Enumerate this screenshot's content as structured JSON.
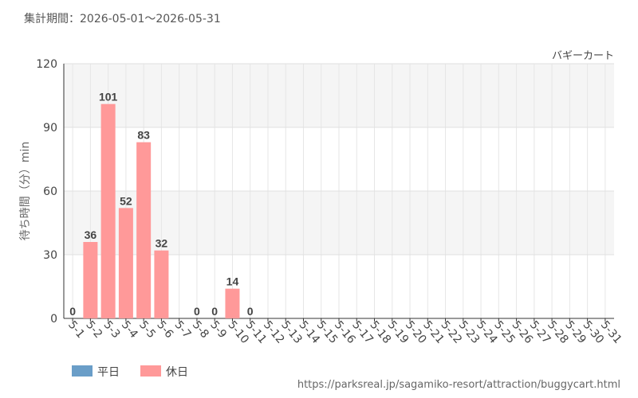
{
  "chart_data": {
    "type": "bar",
    "header": "集計期間：2026-05-01〜2026-05-31",
    "title": "バギーカート",
    "y_label": "待ち時間（分）min",
    "source": "https://parksreal.jp/sagamiko-resort/attraction/buggycart.html",
    "categories": [
      "5-1",
      "5-2",
      "5-3",
      "5-4",
      "5-5",
      "5-6",
      "5-7",
      "5-8",
      "5-9",
      "5-10",
      "5-11",
      "5-12",
      "5-13",
      "5-14",
      "5-15",
      "5-16",
      "5-17",
      "5-18",
      "5-19",
      "5-20",
      "5-21",
      "5-22",
      "5-23",
      "5-24",
      "5-25",
      "5-26",
      "5-27",
      "5-28",
      "5-29",
      "5-30",
      "5-31"
    ],
    "category_colors": [
      "#444",
      "#f08080",
      "#f08080",
      "#f08080",
      "#f08080",
      "#f08080",
      "#444",
      "#444",
      "#f08080",
      "#f08080",
      "#444",
      "#444",
      "#444",
      "#444",
      "#444",
      "#f08080",
      "#f08080",
      "#444",
      "#444",
      "#444",
      "#444",
      "#444",
      "#f08080",
      "#f08080",
      "#444",
      "#444",
      "#444",
      "#444",
      "#444",
      "#f08080",
      "#f08080"
    ],
    "series": [
      {
        "name": "平日",
        "color": "#6a9ec8",
        "label_color": "#5a8ec0",
        "values": [
          0,
          null,
          null,
          null,
          null,
          null,
          null,
          0,
          null,
          null,
          0,
          null,
          null,
          null,
          null,
          null,
          null,
          null,
          null,
          null,
          null,
          null,
          null,
          null,
          null,
          null,
          null,
          null,
          null,
          null,
          null
        ]
      },
      {
        "name": "休日",
        "color": "#ff9999",
        "label_color": "#f07878",
        "values": [
          null,
          36,
          101,
          52,
          83,
          32,
          null,
          null,
          0,
          14,
          null,
          null,
          null,
          null,
          null,
          null,
          null,
          null,
          null,
          null,
          null,
          null,
          null,
          null,
          null,
          null,
          null,
          null,
          null,
          null,
          null
        ]
      }
    ],
    "ylim": [
      0,
      120
    ],
    "yticks": [
      0,
      30,
      60,
      90,
      120
    ],
    "grid": true
  }
}
